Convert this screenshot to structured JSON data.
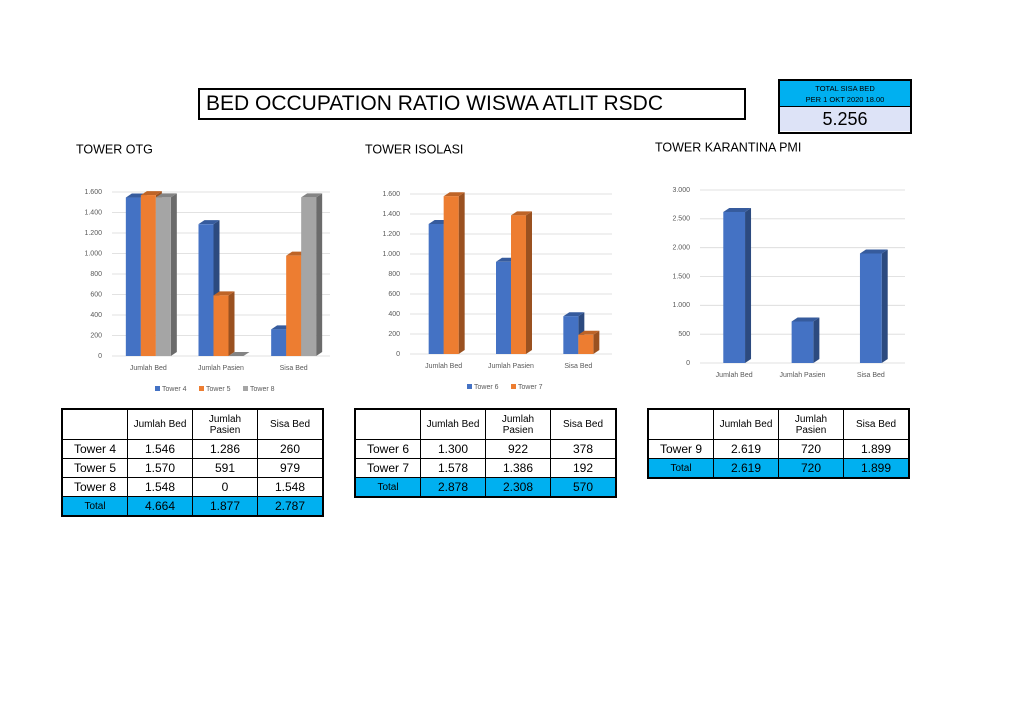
{
  "header": {
    "title": "BED OCCUPATION RATIO WISWA ATLIT RSDC"
  },
  "total_box": {
    "label": [
      "TOTAL SISA BED",
      "PER 1 OKT 2020 18.00"
    ],
    "value": "5.256"
  },
  "chart_data": [
    {
      "type": "bar",
      "title": "TOWER OTG",
      "categories": [
        "Jumlah Bed",
        "Jumlah Pasien",
        "Sisa Bed"
      ],
      "series": [
        {
          "name": "Tower 4",
          "color": "#4472c4",
          "values": [
            1546,
            1286,
            260
          ]
        },
        {
          "name": "Tower 5",
          "color": "#ed7d31",
          "values": [
            1570,
            591,
            979
          ]
        },
        {
          "name": "Tower 8",
          "color": "#a5a5a5",
          "values": [
            1548,
            0,
            1548
          ]
        }
      ],
      "ylim": [
        0,
        1600
      ],
      "yticks": [
        0,
        200,
        400,
        600,
        800,
        {
          "value": 1000,
          "label": "1.000"
        },
        {
          "value": 1200,
          "label": "1.200"
        },
        {
          "value": 1400,
          "label": "1.400"
        },
        {
          "value": 1600,
          "label": "1.600"
        }
      ],
      "grid": true,
      "legend": "bottom"
    },
    {
      "type": "bar",
      "title": "TOWER ISOLASI",
      "categories": [
        "Jumlah Bed",
        "Jumlah Pasien",
        "Sisa Bed"
      ],
      "series": [
        {
          "name": "Tower 6",
          "color": "#4472c4",
          "values": [
            1300,
            922,
            378
          ]
        },
        {
          "name": "Tower 7",
          "color": "#ed7d31",
          "values": [
            1578,
            1386,
            192
          ]
        }
      ],
      "ylim": [
        0,
        1600
      ],
      "yticks": [
        0,
        200,
        400,
        600,
        800,
        {
          "value": 1000,
          "label": "1.000"
        },
        {
          "value": 1200,
          "label": "1.200"
        },
        {
          "value": 1400,
          "label": "1.400"
        },
        {
          "value": 1600,
          "label": "1.600"
        }
      ],
      "grid": true,
      "legend": "bottom"
    },
    {
      "type": "bar",
      "title": "TOWER KARANTINA PMI",
      "categories": [
        "Jumlah Bed",
        "Jumlah Pasien",
        "Sisa Bed"
      ],
      "series": [
        {
          "color": "#4472c4",
          "values": [
            2619,
            720,
            1899
          ]
        }
      ],
      "ylim": [
        0,
        3000
      ],
      "yticks": [
        0,
        500,
        {
          "value": 1000,
          "label": "1.000"
        },
        {
          "value": 1500,
          "label": "1.500"
        },
        {
          "value": 2000,
          "label": "2.000"
        },
        {
          "value": 2500,
          "label": "2.500"
        },
        {
          "value": 3000,
          "label": "3.000"
        }
      ],
      "grid": true,
      "legend": "none"
    }
  ],
  "tables": [
    {
      "columns": [
        "Jumlah Bed",
        "Jumlah Pasien",
        "Sisa Bed"
      ],
      "rows": [
        [
          "Tower 4",
          "1.546",
          "1.286",
          "260"
        ],
        [
          "Tower 5",
          "1.570",
          "591",
          "979"
        ],
        [
          "Tower 8",
          "1.548",
          "0",
          "1.548"
        ]
      ],
      "total": [
        "Total",
        "4.664",
        "1.877",
        "2.787"
      ]
    },
    {
      "columns": [
        "Jumlah Bed",
        "Jumlah Pasien",
        "Sisa Bed"
      ],
      "rows": [
        [
          "Tower 6",
          "1.300",
          "922",
          "378"
        ],
        [
          "Tower 7",
          "1.578",
          "1.386",
          "192"
        ]
      ],
      "total": [
        "Total",
        "2.878",
        "2.308",
        "570"
      ]
    },
    {
      "columns": [
        "Jumlah Bed",
        "Jumlah Pasien",
        "Sisa Bed"
      ],
      "rows": [
        [
          "Tower 9",
          "2.619",
          "720",
          "1.899"
        ]
      ],
      "total": [
        "Total",
        "2.619",
        "720",
        "1.899"
      ]
    }
  ]
}
